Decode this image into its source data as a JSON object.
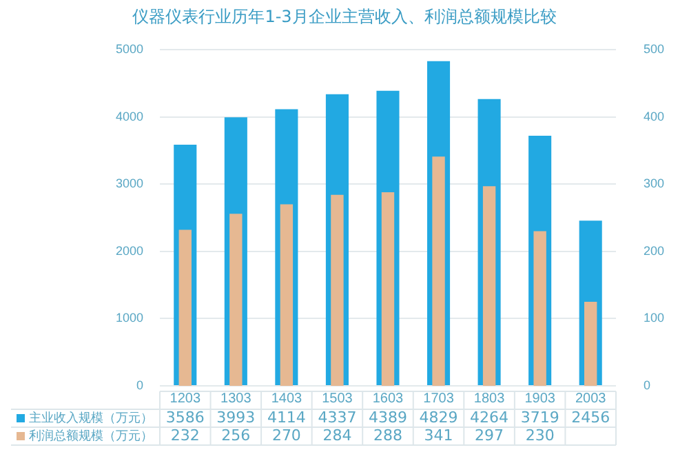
{
  "chart_data": {
    "type": "bar",
    "title": "仪器仪表行业历年1-3月企业主营收入、利润总额规模比较",
    "categories": [
      "1203",
      "1303",
      "1403",
      "1503",
      "1603",
      "1703",
      "1803",
      "1903",
      "2003"
    ],
    "series": [
      {
        "name": "主业收入规模（万元）",
        "color": "#22a9e2",
        "values": [
          3586,
          3993,
          4114,
          4337,
          4389,
          4829,
          4264,
          3719,
          2456
        ],
        "value_labels": [
          "3586",
          "3993",
          "4114",
          "4337",
          "4389",
          "4829",
          "4264",
          "3719",
          "2456"
        ]
      },
      {
        "name": "利润总额规模（万元）",
        "color": "#e6b892",
        "axis": "y2",
        "values": [
          232,
          256,
          270,
          284,
          288,
          341,
          297,
          230,
          125
        ],
        "value_labels": [
          "232",
          "256",
          "270",
          "284",
          "288",
          "341",
          "297",
          "230",
          null
        ]
      }
    ],
    "ylim": [
      0,
      5000
    ],
    "yticks": [
      0,
      1000,
      2000,
      3000,
      4000,
      5000
    ],
    "y2lim": [
      0,
      500
    ],
    "y2ticks": [
      0,
      100,
      200,
      300,
      400,
      500
    ],
    "grid": "y",
    "legend": "bottom left"
  }
}
